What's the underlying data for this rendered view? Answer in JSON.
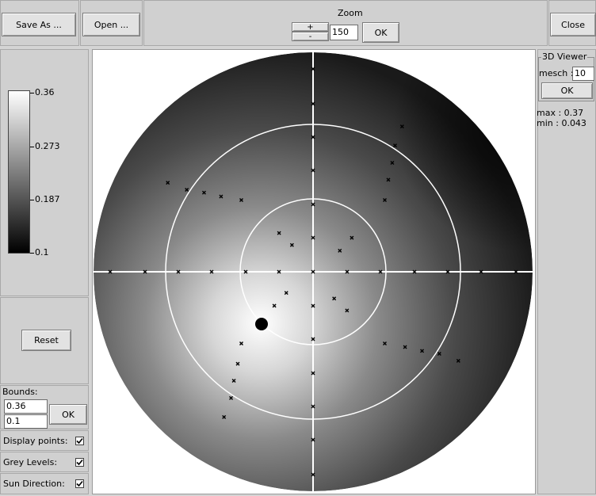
{
  "toolbar": {
    "save_as_label": "Save As ...",
    "open_label": "Open ...",
    "zoom_title": "Zoom",
    "zoom_plus": "+",
    "zoom_minus": "-",
    "zoom_value": "150",
    "zoom_ok_label": "OK",
    "close_label": "Close"
  },
  "colorbar": {
    "ticks": [
      "0.36",
      "0.273",
      "0.187",
      "0.1"
    ]
  },
  "left_panel": {
    "reset_label": "Reset",
    "bounds_label": "Bounds:",
    "bound_upper": "0.36",
    "bound_lower": "0.1",
    "bounds_ok_label": "OK",
    "display_points_label": "Display points:",
    "display_points_checked": true,
    "grey_levels_label": "Grey Levels:",
    "grey_levels_checked": true,
    "sun_direction_label": "Sun Direction:",
    "sun_direction_checked": true
  },
  "viewer3d": {
    "group_title": "3D Viewer",
    "mesch_label": "mesch :",
    "mesch_value": "10",
    "ok_label": "OK",
    "max_text": "max : 0.37",
    "min_text": "min : 0.043"
  },
  "plot": {
    "colors": {
      "grid": "#ffffff",
      "marker": "#000000",
      "sun": "#000000"
    }
  }
}
